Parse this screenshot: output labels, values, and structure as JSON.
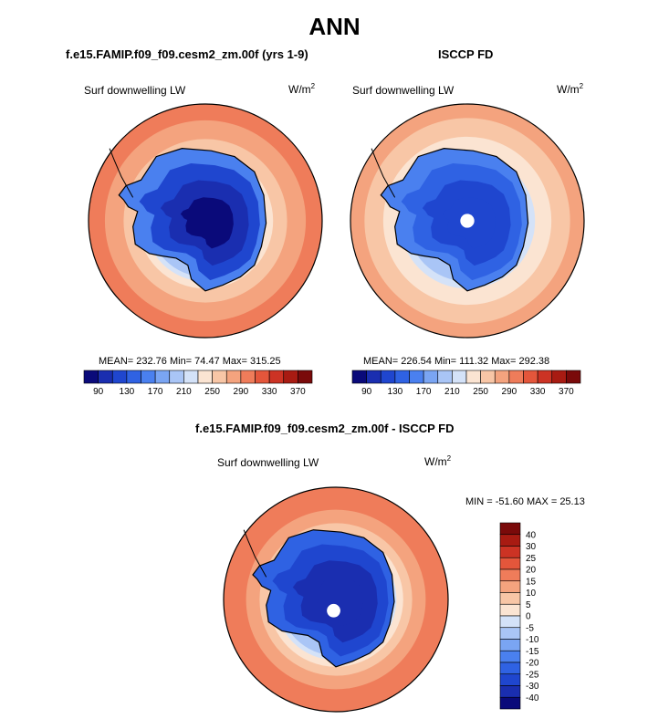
{
  "figure": {
    "title": "ANN"
  },
  "chart_data": [
    {
      "type": "polar-map",
      "title": "f.e15.FAMIP.f09_f09.cesm2_zm.00f (yrs 1-9)",
      "variable": "Surf downwelling LW",
      "units_base": "W/m",
      "units_exp": "2",
      "stats": "MEAN= 232.76  Min=  74.47  Max= 315.25",
      "colorbar": {
        "orientation": "horizontal",
        "levels": [
          90,
          110,
          130,
          150,
          170,
          190,
          210,
          230,
          250,
          270,
          290,
          310,
          330,
          350,
          370
        ],
        "tick_labels": [
          "90",
          "130",
          "170",
          "210",
          "250",
          "290",
          "330",
          "370"
        ],
        "colors": [
          "#0a0a7a",
          "#1a2eb0",
          "#1f46cf",
          "#2f62e3",
          "#4a80ef",
          "#7aa5f3",
          "#a9c5f6",
          "#d4e2f8",
          "#fbe4d2",
          "#f8c6a6",
          "#f4a37e",
          "#ef7c5a",
          "#e4563b",
          "#cc3324",
          "#a81b12",
          "#7a0a0a"
        ]
      },
      "polar_hole": false
    },
    {
      "type": "polar-map",
      "title": "ISCCP FD",
      "variable": "Surf downwelling LW",
      "units_base": "W/m",
      "units_exp": "2",
      "stats": "MEAN= 226.54  Min= 111.32  Max= 292.38",
      "colorbar": {
        "orientation": "horizontal",
        "levels": [
          90,
          110,
          130,
          150,
          170,
          190,
          210,
          230,
          250,
          270,
          290,
          310,
          330,
          350,
          370
        ],
        "tick_labels": [
          "90",
          "130",
          "170",
          "210",
          "250",
          "290",
          "330",
          "370"
        ],
        "colors": [
          "#0a0a7a",
          "#1a2eb0",
          "#1f46cf",
          "#2f62e3",
          "#4a80ef",
          "#7aa5f3",
          "#a9c5f6",
          "#d4e2f8",
          "#fbe4d2",
          "#f8c6a6",
          "#f4a37e",
          "#ef7c5a",
          "#e4563b",
          "#cc3324",
          "#a81b12",
          "#7a0a0a"
        ]
      },
      "polar_hole": true
    },
    {
      "type": "polar-map",
      "title": "f.e15.FAMIP.f09_f09.cesm2_zm.00f - ISCCP FD",
      "variable": "Surf downwelling LW",
      "units_base": "W/m",
      "units_exp": "2",
      "stats": "MIN = -51.60 MAX =  25.13",
      "colorbar": {
        "orientation": "vertical",
        "levels": [
          -40,
          -30,
          -25,
          -20,
          -15,
          -10,
          -5,
          0,
          5,
          10,
          15,
          20,
          25,
          30,
          40
        ],
        "tick_labels": [
          "40",
          "30",
          "25",
          "20",
          "15",
          "10",
          "5",
          "0",
          "-5",
          "-10",
          "-15",
          "-20",
          "-25",
          "-30",
          "-40"
        ],
        "colors": [
          "#0a0a7a",
          "#1a2eb0",
          "#1f46cf",
          "#2f62e3",
          "#4a80ef",
          "#7aa5f3",
          "#a9c5f6",
          "#d4e2f8",
          "#fbe4d2",
          "#f8c6a6",
          "#f4a37e",
          "#ef7c5a",
          "#e4563b",
          "#cc3324",
          "#a81b12",
          "#7a0a0a"
        ]
      },
      "polar_hole": true
    }
  ]
}
